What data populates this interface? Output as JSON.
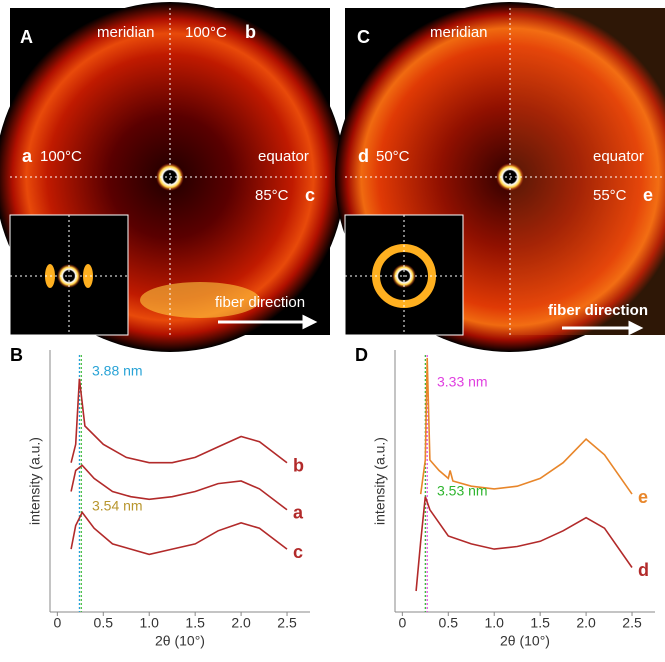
{
  "images": [
    {
      "label": "A",
      "meridian": "meridian",
      "equator": "equator",
      "top": "100°C",
      "top_id": "b",
      "left_id": "a",
      "left": "100°C",
      "right": "85°C",
      "right_id": "c",
      "arrow": "fiber direction"
    },
    {
      "label": "C",
      "meridian": "meridian",
      "equator": "equator",
      "left_id": "d",
      "left": "50°C",
      "right": "55°C",
      "right_id": "e",
      "arrow": "fiber direction"
    }
  ],
  "chart_data": [
    {
      "type": "line",
      "label": "B",
      "ylabel": "intensity (a.u.)",
      "xlabel": "2θ (10°)",
      "xlim": [
        -0.08,
        2.75
      ],
      "ylim": [
        0,
        10
      ],
      "xticks": [
        0,
        0.5,
        {
          "value": 1,
          "label": "1.0"
        },
        1.5,
        {
          "value": 2,
          "label": "2.0"
        },
        2.5
      ],
      "vlines": [
        {
          "x": 0.24,
          "color": "#29a3d6"
        },
        {
          "x": 0.26,
          "color": "#2fb52f"
        }
      ],
      "annotations": [
        {
          "text": "3.88 nm",
          "color": "#29a3d6"
        },
        {
          "text": "3.54 nm",
          "color": "#b8962e"
        }
      ],
      "series": [
        {
          "name": "b",
          "color": "#b22a2a",
          "x": [
            0.15,
            0.2,
            0.24,
            0.3,
            0.5,
            0.75,
            1.0,
            1.25,
            1.5,
            1.75,
            2.0,
            2.2,
            2.5
          ],
          "values": [
            5.7,
            6.4,
            8.9,
            7.1,
            6.4,
            5.9,
            5.7,
            5.7,
            5.9,
            6.3,
            6.7,
            6.5,
            5.7
          ]
        },
        {
          "name": "a",
          "color": "#b22a2a",
          "x": [
            0.15,
            0.2,
            0.27,
            0.4,
            0.6,
            0.8,
            1.0,
            1.25,
            1.5,
            1.75,
            2.0,
            2.2,
            2.5
          ],
          "values": [
            4.6,
            5.4,
            5.6,
            5.1,
            4.6,
            4.4,
            4.3,
            4.4,
            4.6,
            4.9,
            5.0,
            4.7,
            3.9
          ]
        },
        {
          "name": "c",
          "color": "#b22a2a",
          "x": [
            0.15,
            0.2,
            0.27,
            0.4,
            0.6,
            0.8,
            1.0,
            1.25,
            1.5,
            1.75,
            2.0,
            2.2,
            2.5
          ],
          "values": [
            2.4,
            3.3,
            3.8,
            3.2,
            2.6,
            2.4,
            2.2,
            2.4,
            2.6,
            3.1,
            3.4,
            3.2,
            2.4
          ]
        }
      ]
    },
    {
      "type": "line",
      "label": "D",
      "ylabel": "intensity (a.u.)",
      "xlabel": "2θ (10°)",
      "xlim": [
        -0.08,
        2.75
      ],
      "ylim": [
        0,
        10
      ],
      "xticks": [
        0,
        0.5,
        {
          "value": 1,
          "label": "1.0"
        },
        1.5,
        {
          "value": 2,
          "label": "2.0"
        },
        2.5
      ],
      "vlines": [
        {
          "x": 0.25,
          "color": "#2fb52f"
        },
        {
          "x": 0.27,
          "color": "#e040e0"
        }
      ],
      "annotations": [
        {
          "text": "3.33 nm",
          "color": "#e040e0"
        },
        {
          "text": "3.53 nm",
          "color": "#2fb52f"
        }
      ],
      "series": [
        {
          "name": "e",
          "color": "#e8862a",
          "x": [
            0.2,
            0.25,
            0.27,
            0.3,
            0.4,
            0.5,
            0.52,
            0.55,
            0.75,
            1.0,
            1.25,
            1.5,
            1.75,
            2.0,
            2.2,
            2.5
          ],
          "values": [
            4.5,
            5.8,
            9.7,
            5.8,
            5.4,
            5.1,
            5.4,
            5.0,
            4.8,
            4.7,
            4.8,
            5.1,
            5.7,
            6.6,
            6.0,
            4.5
          ]
        },
        {
          "name": "d",
          "color": "#b22a2a",
          "x": [
            0.15,
            0.2,
            0.25,
            0.3,
            0.5,
            0.75,
            1.0,
            1.25,
            1.5,
            1.75,
            2.0,
            2.2,
            2.5
          ],
          "values": [
            0.8,
            2.7,
            4.4,
            3.9,
            2.9,
            2.6,
            2.4,
            2.5,
            2.7,
            3.1,
            3.6,
            3.2,
            1.7
          ]
        }
      ]
    }
  ]
}
